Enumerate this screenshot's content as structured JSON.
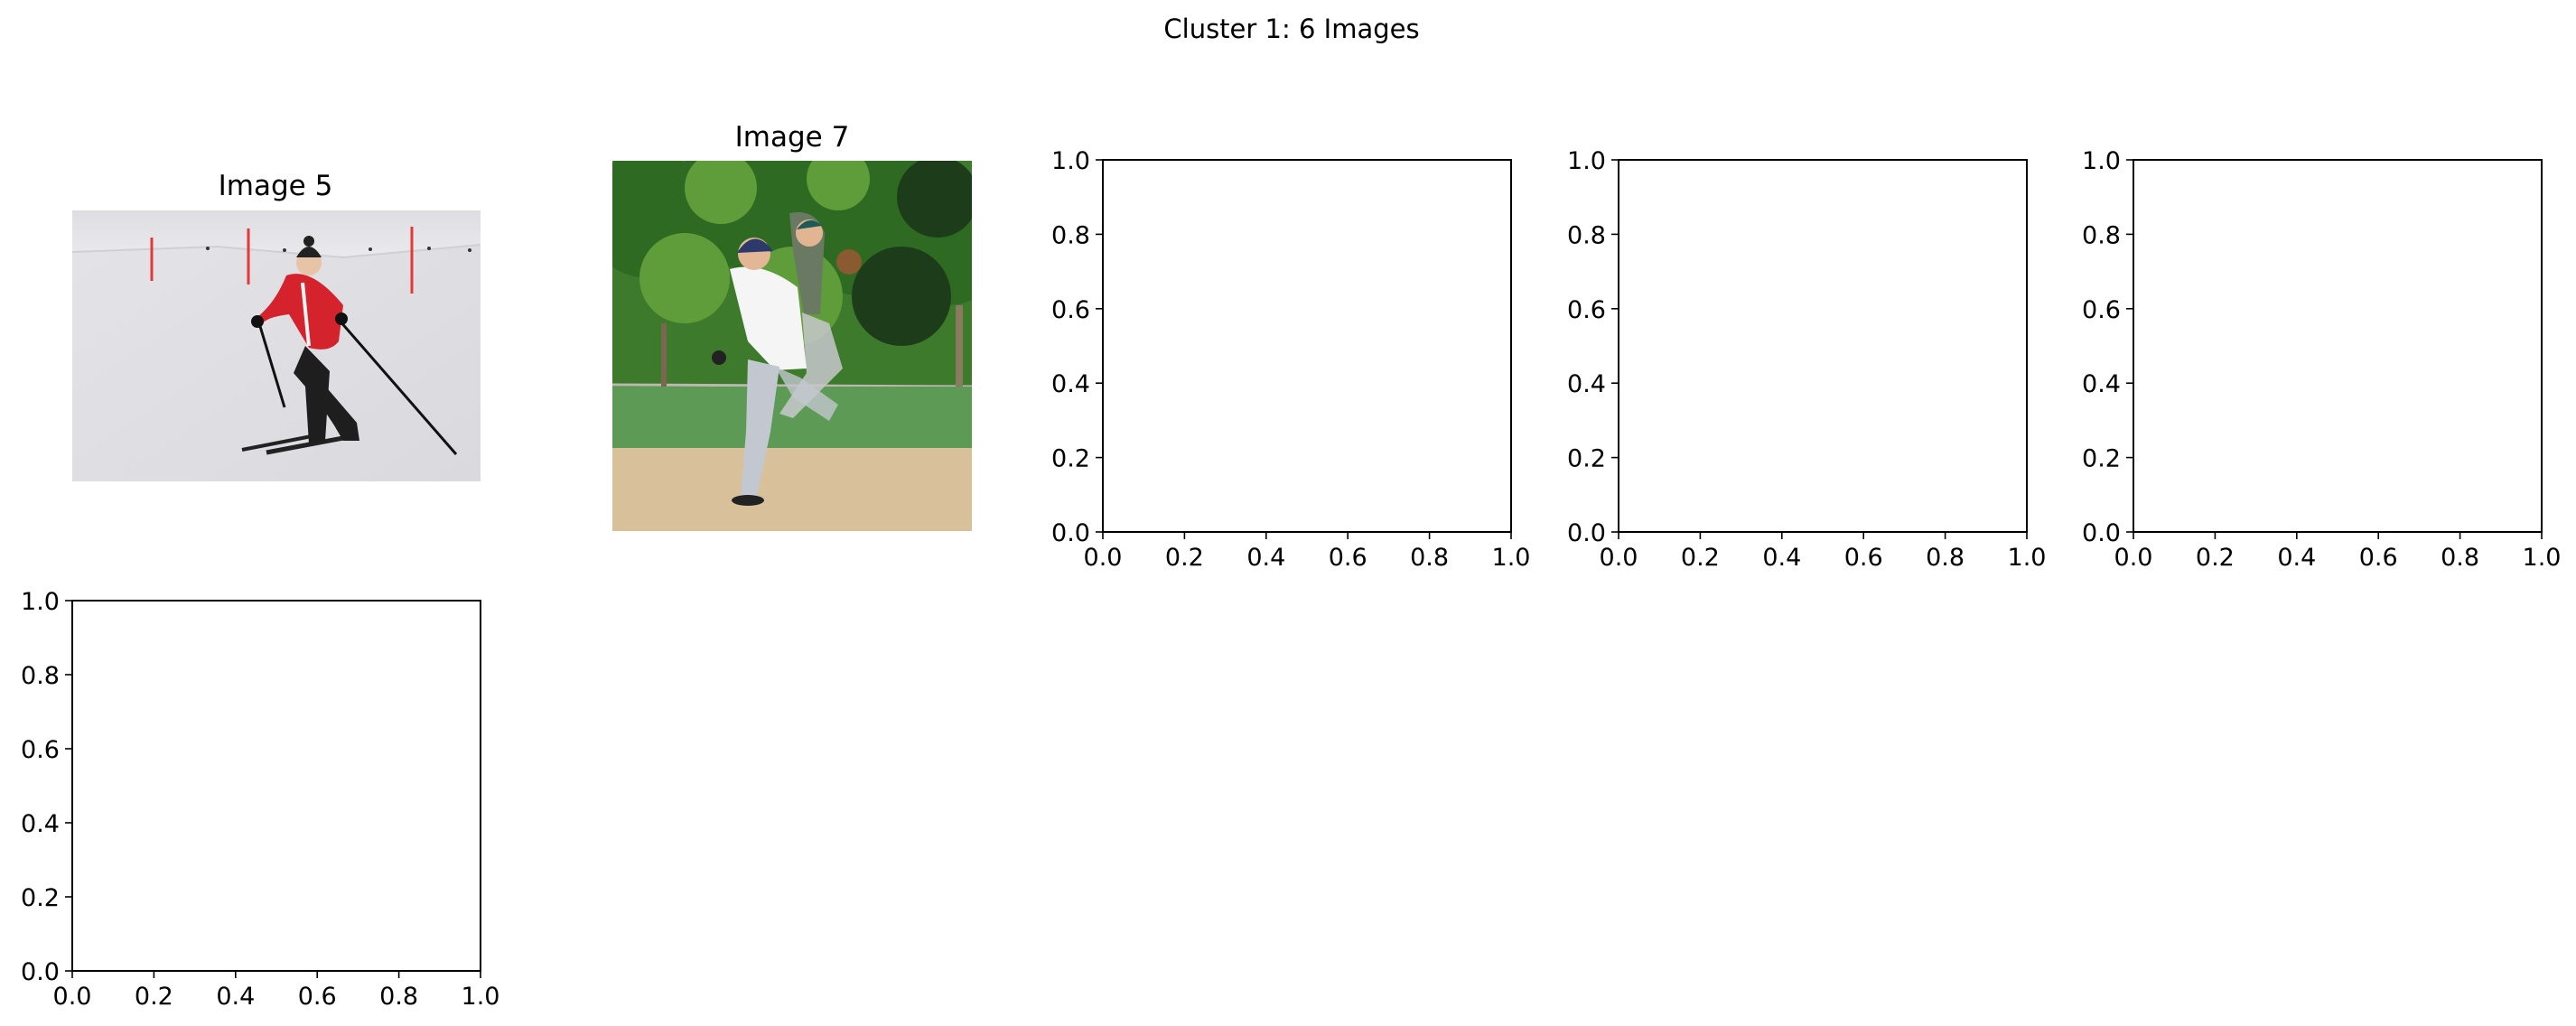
{
  "figure": {
    "title": "Cluster 1: 6 Images"
  },
  "panels": [
    {
      "title": "Image 5",
      "photo": "skier-photo",
      "photo_description_icon": "skier-icon"
    },
    {
      "title": "Image 7",
      "photo": "baseball-photo",
      "photo_description_icon": "baseball-players-icon"
    }
  ],
  "chart_data": [
    {
      "type": "scatter",
      "title": "",
      "xlabel": "",
      "ylabel": "",
      "xlim": [
        0,
        1
      ],
      "ylim": [
        0,
        1
      ],
      "xticks": [
        "0.0",
        "0.2",
        "0.4",
        "0.6",
        "0.8",
        "1.0"
      ],
      "yticks": [
        "0.0",
        "0.2",
        "0.4",
        "0.6",
        "0.8",
        "1.0"
      ],
      "series": [],
      "grid": false
    },
    {
      "type": "scatter",
      "title": "",
      "xlabel": "",
      "ylabel": "",
      "xlim": [
        0,
        1
      ],
      "ylim": [
        0,
        1
      ],
      "xticks": [
        "0.0",
        "0.2",
        "0.4",
        "0.6",
        "0.8",
        "1.0"
      ],
      "yticks": [
        "0.0",
        "0.2",
        "0.4",
        "0.6",
        "0.8",
        "1.0"
      ],
      "series": [],
      "grid": false
    },
    {
      "type": "scatter",
      "title": "",
      "xlabel": "",
      "ylabel": "",
      "xlim": [
        0,
        1
      ],
      "ylim": [
        0,
        1
      ],
      "xticks": [
        "0.0",
        "0.2",
        "0.4",
        "0.6",
        "0.8",
        "1.0"
      ],
      "yticks": [
        "0.0",
        "0.2",
        "0.4",
        "0.6",
        "0.8",
        "1.0"
      ],
      "series": [],
      "grid": false
    },
    {
      "type": "scatter",
      "title": "",
      "xlabel": "",
      "ylabel": "",
      "xlim": [
        0,
        1
      ],
      "ylim": [
        0,
        1
      ],
      "xticks": [
        "0.0",
        "0.2",
        "0.4",
        "0.6",
        "0.8",
        "1.0"
      ],
      "yticks": [
        "0.0",
        "0.2",
        "0.4",
        "0.6",
        "0.8",
        "1.0"
      ],
      "series": [],
      "grid": false
    }
  ]
}
